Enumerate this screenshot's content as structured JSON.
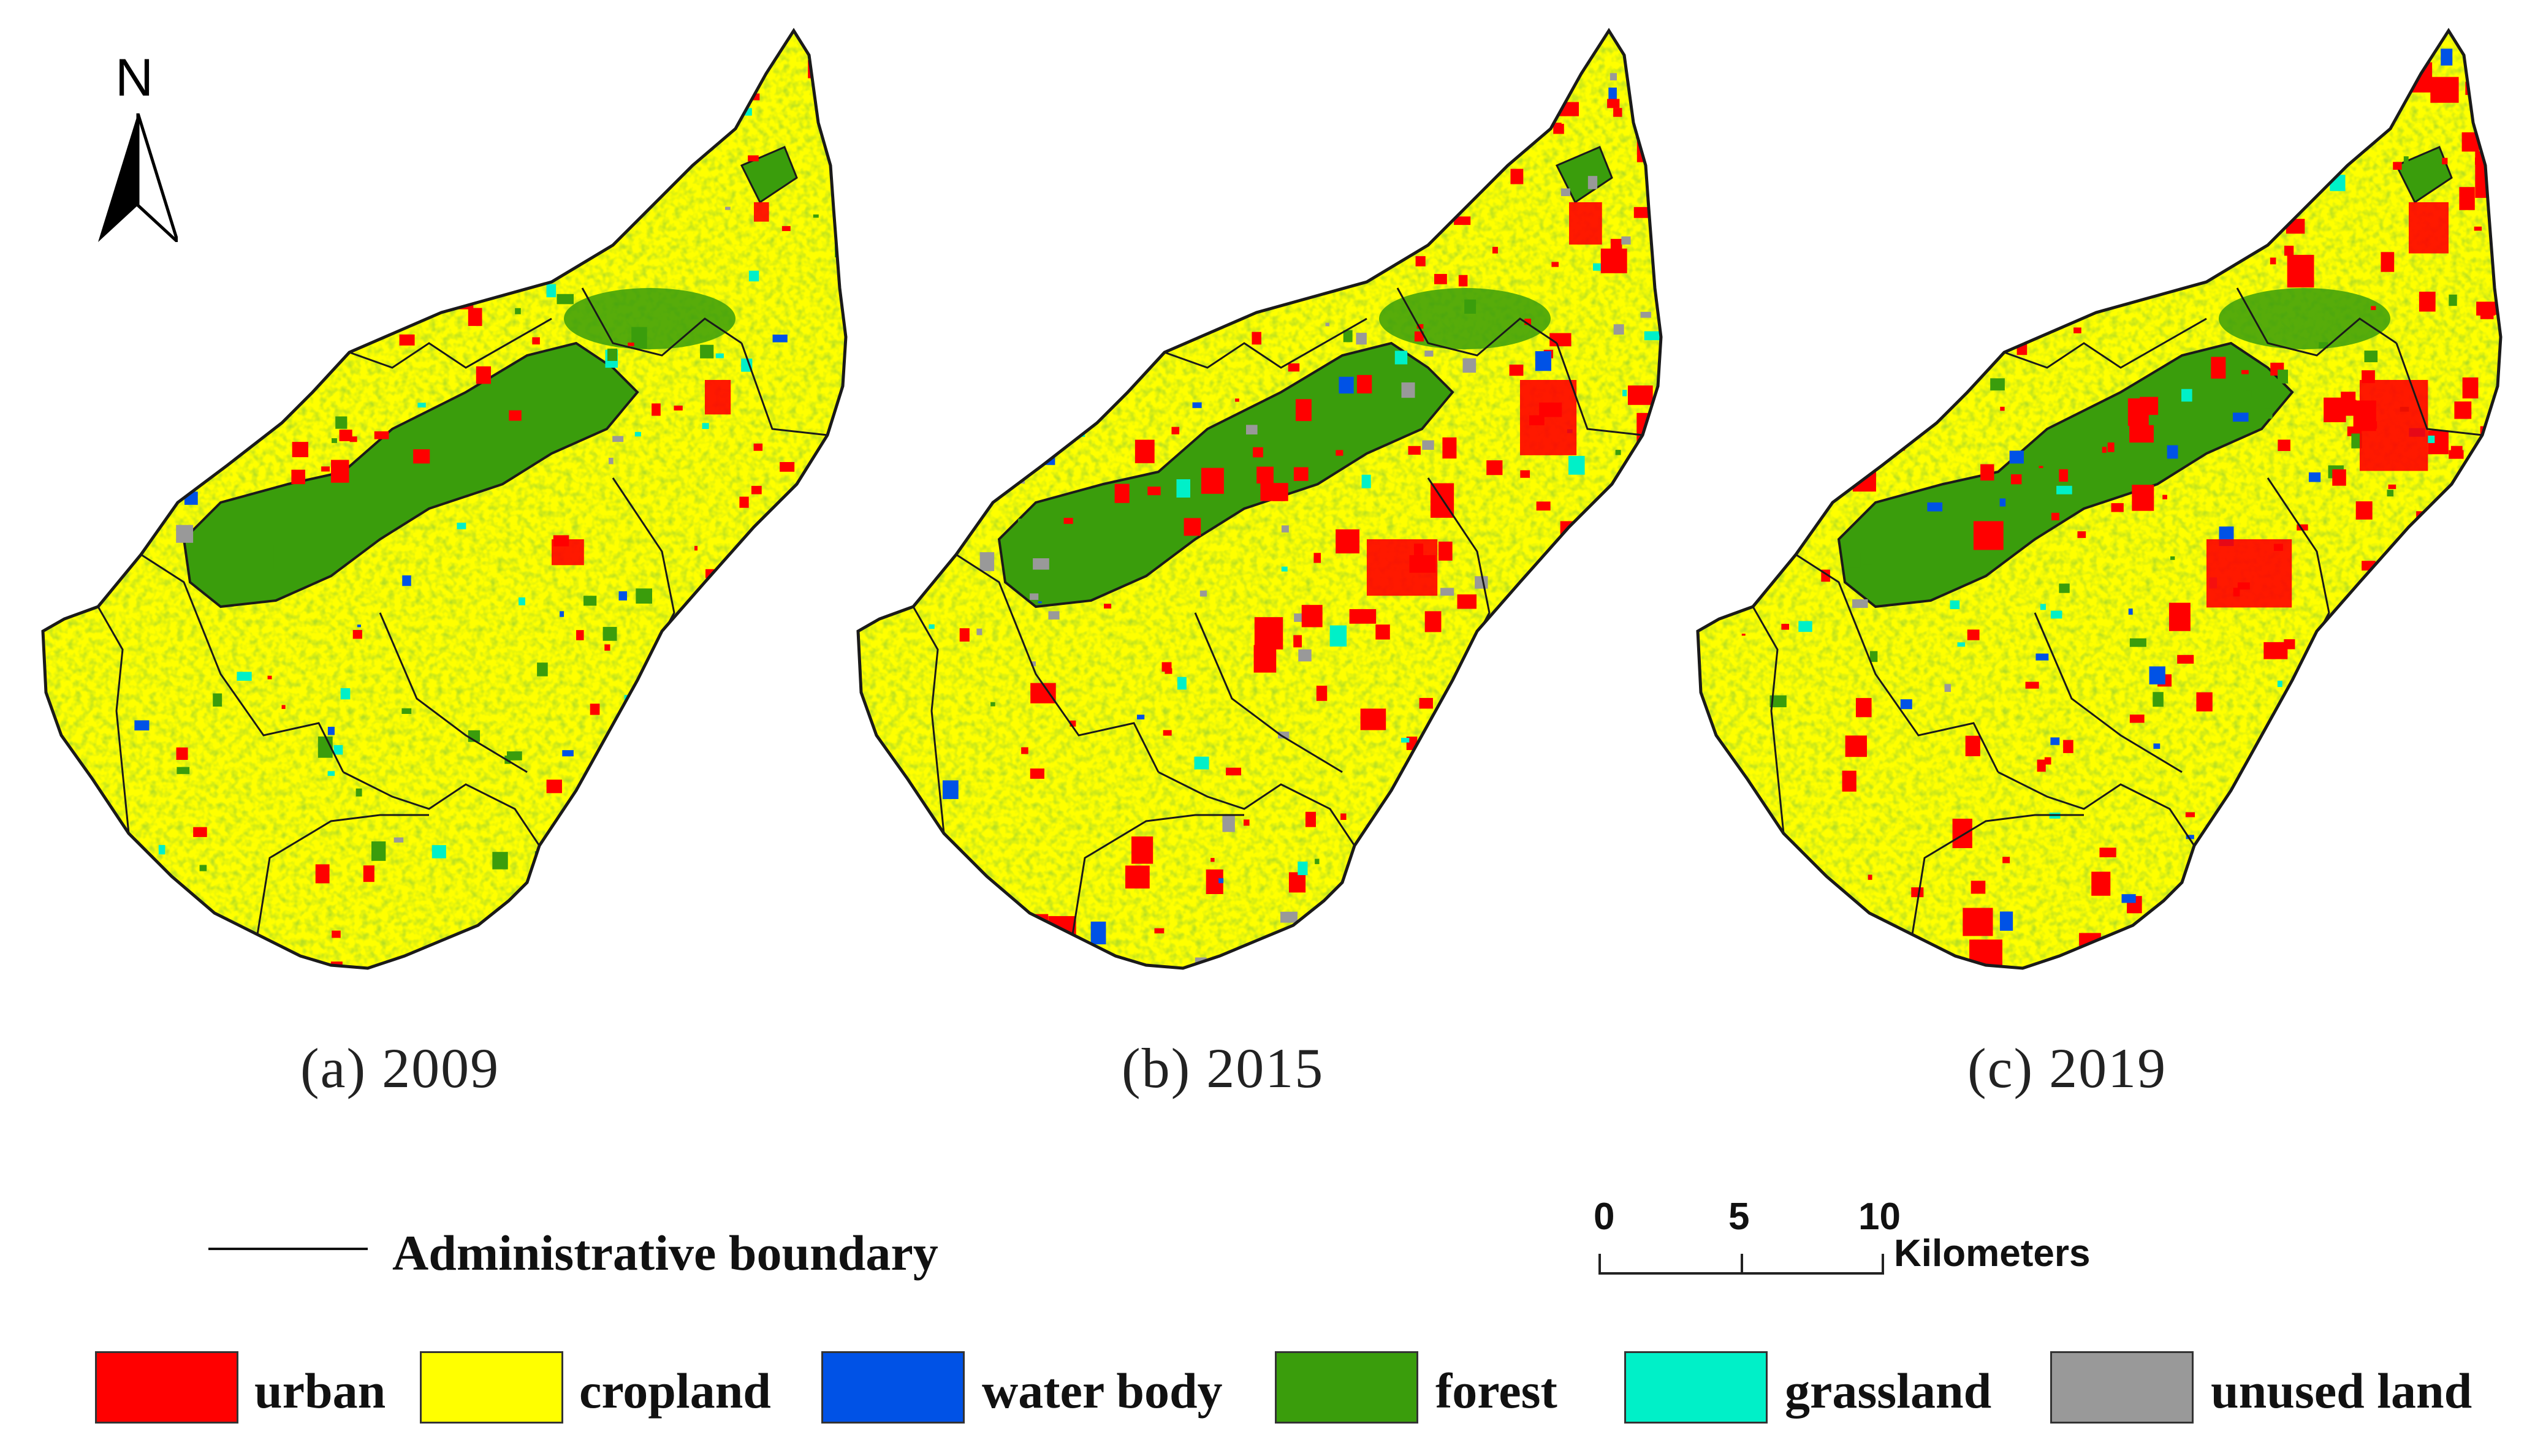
{
  "north_label": "N",
  "maps": [
    {
      "caption": "(a) 2009"
    },
    {
      "caption": "(b) 2015"
    },
    {
      "caption": "(c) 2019"
    }
  ],
  "boundary_legend": "Administrative boundary",
  "scale": {
    "ticks": [
      "0",
      "5",
      "10"
    ],
    "unit": "Kilometers"
  },
  "legend": [
    {
      "label": "urban",
      "color": "#ff0000"
    },
    {
      "label": "cropland",
      "color": "#ffff00"
    },
    {
      "label": "water body",
      "color": "#0052e6"
    },
    {
      "label": "forest",
      "color": "#3a9d0c"
    },
    {
      "label": "grassland",
      "color": "#00f0c8"
    },
    {
      "label": "unused land",
      "color": "#999999"
    }
  ],
  "map_style": {
    "base_color": "#ffff00",
    "boundary_color": "#1a1a1a",
    "forest_color": "#3a9d0c",
    "urban_color": "#ff0000",
    "water_color": "#0052e6",
    "grass_color": "#00f0c8",
    "unused_color": "#999999"
  }
}
